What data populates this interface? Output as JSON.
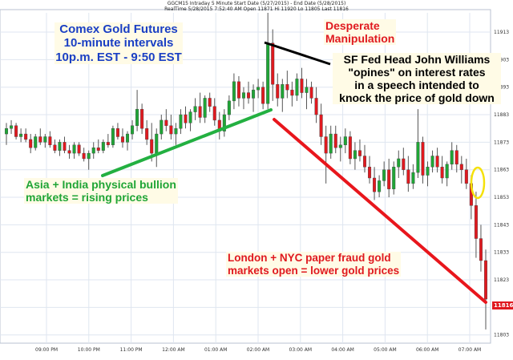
{
  "chart_data": {
    "type": "candlestick",
    "header": {
      "line1": "GGCM15 Intraday  5 Minute Start Date (5/27/2015) - End Date (5/28/2015)",
      "line2": "RealTime 5/28/2015 7:52:40 AM Open 11871 Hi 11920 Lo 11805 Last 11816"
    },
    "ylim": [
      11800,
      11920
    ],
    "y_ticks": [
      11803,
      11813,
      11823,
      11833,
      11843,
      11853,
      11863,
      11873,
      11883,
      11893,
      11903,
      11913
    ],
    "x_ticks": [
      "09:00 PM",
      "10:00 PM",
      "11:00 PM",
      "12:00 AM",
      "01:00 AM",
      "02:00 AM",
      "03:00 AM",
      "04:00 AM",
      "05:00 AM",
      "06:00 AM",
      "07:00 AM"
    ],
    "last_value_label": "11816",
    "colors": {
      "up": "#1fa536",
      "down": "#e0191f",
      "trend_up": "#23b041",
      "trend_down": "#e8161c",
      "grid": "#dfe6f0"
    },
    "series": [
      {
        "candles_ohlc": [
          [
            11876,
            11880,
            11872,
            11878
          ],
          [
            11878,
            11881,
            11876,
            11879
          ],
          [
            11879,
            11880,
            11874,
            11875
          ],
          [
            11875,
            11878,
            11873,
            11876
          ],
          [
            11876,
            11878,
            11873,
            11874
          ],
          [
            11874,
            11876,
            11869,
            11871
          ],
          [
            11871,
            11876,
            11870,
            11875
          ],
          [
            11875,
            11878,
            11872,
            11873
          ],
          [
            11873,
            11876,
            11871,
            11875
          ],
          [
            11875,
            11877,
            11871,
            11872
          ],
          [
            11872,
            11874,
            11869,
            11870
          ],
          [
            11870,
            11874,
            11868,
            11873
          ],
          [
            11873,
            11875,
            11869,
            11870
          ],
          [
            11870,
            11872,
            11867,
            11869
          ],
          [
            11869,
            11873,
            11867,
            11872
          ],
          [
            11872,
            11873,
            11868,
            11869
          ],
          [
            11869,
            11871,
            11866,
            11867
          ],
          [
            11867,
            11870,
            11863,
            11869
          ],
          [
            11869,
            11873,
            11867,
            11871
          ],
          [
            11871,
            11874,
            11869,
            11870
          ],
          [
            11870,
            11874,
            11869,
            11873
          ],
          [
            11873,
            11876,
            11871,
            11872
          ],
          [
            11872,
            11879,
            11871,
            11878
          ],
          [
            11878,
            11880,
            11874,
            11875
          ],
          [
            11875,
            11878,
            11871,
            11873
          ],
          [
            11873,
            11877,
            11870,
            11876
          ],
          [
            11876,
            11881,
            11874,
            11879
          ],
          [
            11879,
            11892,
            11877,
            11885
          ],
          [
            11885,
            11887,
            11876,
            11878
          ],
          [
            11878,
            11881,
            11872,
            11874
          ],
          [
            11874,
            11880,
            11866,
            11869
          ],
          [
            11869,
            11878,
            11864,
            11876
          ],
          [
            11876,
            11883,
            11874,
            11881
          ],
          [
            11881,
            11885,
            11877,
            11879
          ],
          [
            11879,
            11883,
            11874,
            11876
          ],
          [
            11876,
            11880,
            11872,
            11878
          ],
          [
            11878,
            11885,
            11876,
            11883
          ],
          [
            11883,
            11886,
            11878,
            11880
          ],
          [
            11880,
            11885,
            11877,
            11884
          ],
          [
            11884,
            11889,
            11881,
            11886
          ],
          [
            11886,
            11891,
            11880,
            11882
          ],
          [
            11882,
            11890,
            11880,
            11889
          ],
          [
            11889,
            11891,
            11884,
            11886
          ],
          [
            11886,
            11889,
            11879,
            11881
          ],
          [
            11881,
            11884,
            11874,
            11877
          ],
          [
            11877,
            11885,
            11875,
            11883
          ],
          [
            11883,
            11890,
            11881,
            11888
          ],
          [
            11888,
            11898,
            11885,
            11895
          ],
          [
            11895,
            11897,
            11886,
            11889
          ],
          [
            11889,
            11893,
            11885,
            11891
          ],
          [
            11891,
            11895,
            11887,
            11889
          ],
          [
            11889,
            11894,
            11884,
            11892
          ],
          [
            11892,
            11896,
            11889,
            11893
          ],
          [
            11893,
            11895,
            11885,
            11887
          ],
          [
            11887,
            11920,
            11885,
            11909
          ],
          [
            11909,
            11914,
            11888,
            11894
          ],
          [
            11894,
            11898,
            11886,
            11889
          ],
          [
            11889,
            11896,
            11884,
            11894
          ],
          [
            11894,
            11899,
            11889,
            11892
          ],
          [
            11892,
            11895,
            11886,
            11890
          ],
          [
            11890,
            11898,
            11888,
            11896
          ],
          [
            11896,
            11900,
            11889,
            11891
          ],
          [
            11891,
            11896,
            11885,
            11893
          ],
          [
            11893,
            11895,
            11887,
            11889
          ],
          [
            11889,
            11893,
            11880,
            11883
          ],
          [
            11883,
            11887,
            11872,
            11875
          ],
          [
            11875,
            11879,
            11858,
            11869
          ],
          [
            11869,
            11879,
            11867,
            11876
          ],
          [
            11876,
            11879,
            11869,
            11871
          ],
          [
            11871,
            11875,
            11866,
            11872
          ],
          [
            11872,
            11878,
            11869,
            11875
          ],
          [
            11875,
            11877,
            11865,
            11867
          ],
          [
            11867,
            11873,
            11863,
            11870
          ],
          [
            11870,
            11874,
            11866,
            11868
          ],
          [
            11868,
            11872,
            11862,
            11864
          ],
          [
            11864,
            11868,
            11858,
            11860
          ],
          [
            11860,
            11864,
            11852,
            11855
          ],
          [
            11855,
            11861,
            11853,
            11859
          ],
          [
            11859,
            11866,
            11857,
            11863
          ],
          [
            11863,
            11867,
            11853,
            11856
          ],
          [
            11856,
            11866,
            11854,
            11864
          ],
          [
            11864,
            11870,
            11860,
            11867
          ],
          [
            11867,
            11871,
            11861,
            11863
          ],
          [
            11863,
            11868,
            11855,
            11858
          ],
          [
            11858,
            11865,
            11856,
            11862
          ],
          [
            11862,
            11885,
            11860,
            11873
          ],
          [
            11873,
            11875,
            11858,
            11861
          ],
          [
            11861,
            11866,
            11857,
            11864
          ],
          [
            11864,
            11870,
            11862,
            11868
          ],
          [
            11868,
            11871,
            11862,
            11864
          ],
          [
            11864,
            11868,
            11858,
            11860
          ],
          [
            11860,
            11866,
            11857,
            11865
          ],
          [
            11865,
            11873,
            11863,
            11870
          ],
          [
            11870,
            11872,
            11862,
            11865
          ],
          [
            11865,
            11868,
            11858,
            11863
          ],
          [
            11863,
            11867,
            11856,
            11858
          ],
          [
            11858,
            11861,
            11845,
            11850
          ],
          [
            11850,
            11855,
            11831,
            11838
          ],
          [
            11838,
            11843,
            11826,
            11830
          ],
          [
            11830,
            11834,
            11805,
            11816
          ]
        ]
      }
    ]
  },
  "annotations": {
    "comex": "Comex Gold Futures\n10-minute intervals\n10p.m. EST - 9:50 EST",
    "desperate": "Desperate\nManipulation",
    "sffed": "SF Fed Head John Williams\n\"opines\" on interest rates\nin a speech intended to\nknock the price of gold down",
    "asia": "Asia + India physical bullion\nmarkets = rising prices",
    "london": "London + NYC paper fraud gold\nmarkets open =  lower gold prices"
  }
}
